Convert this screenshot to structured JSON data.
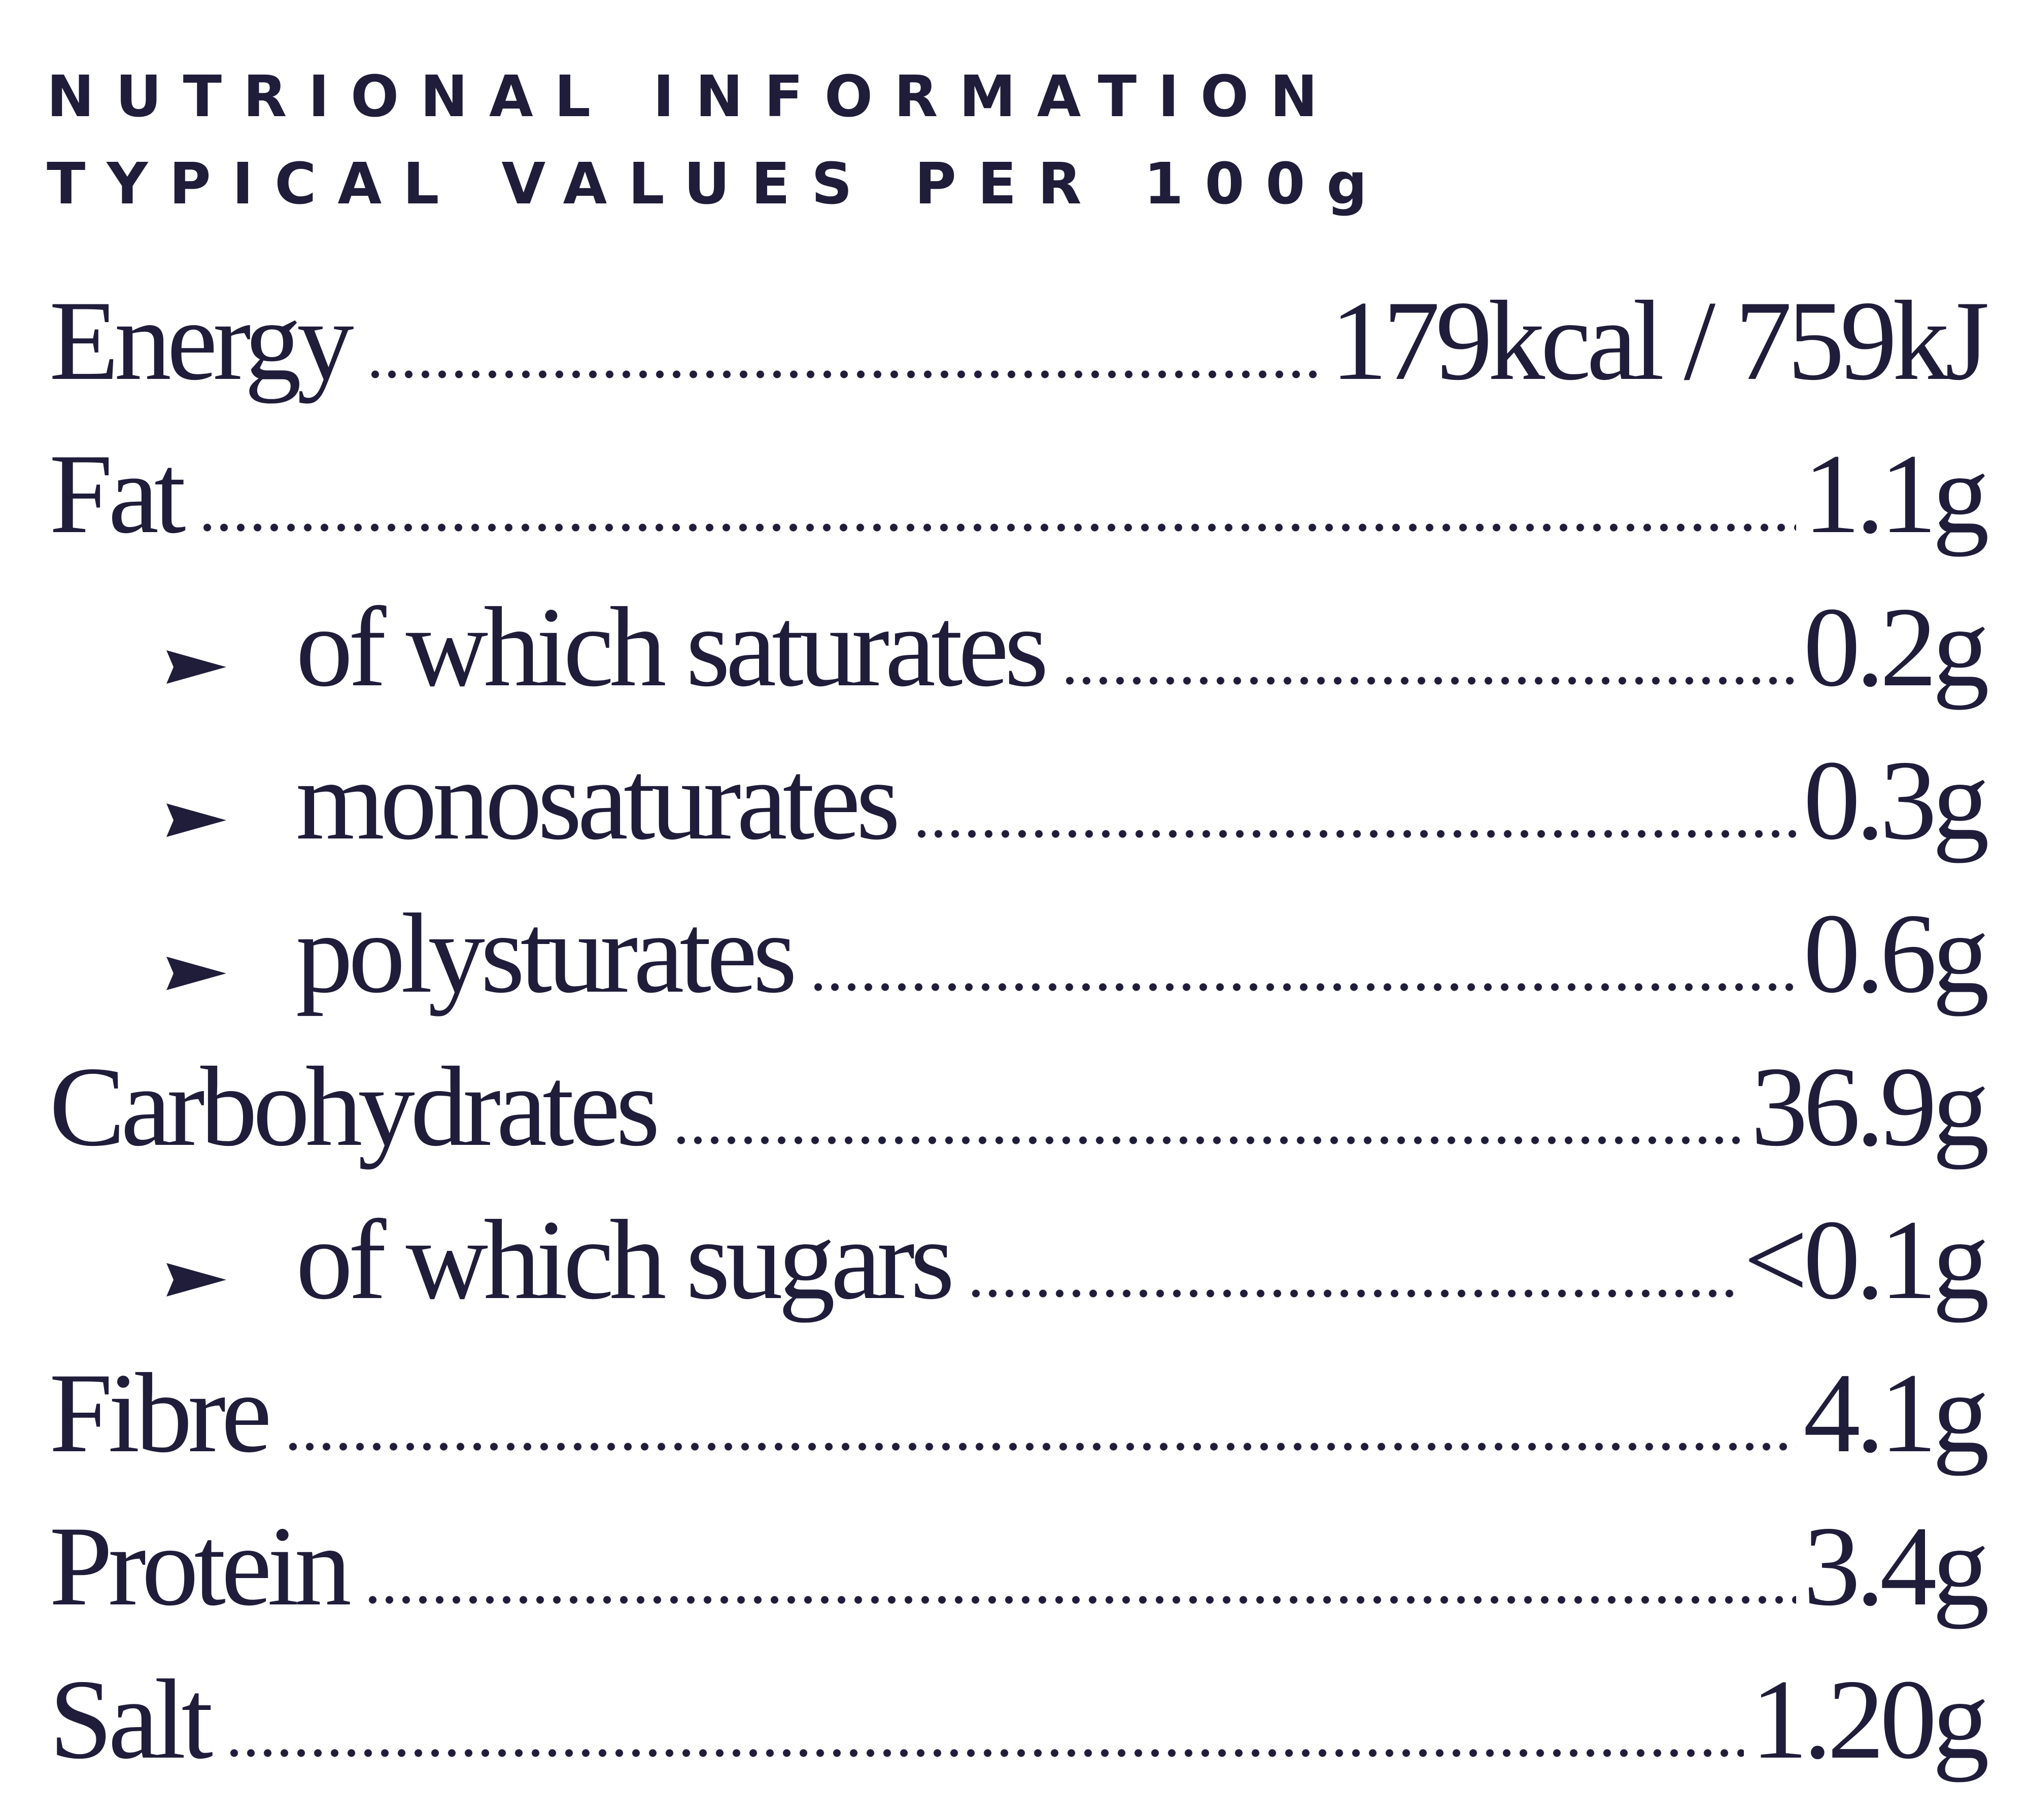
{
  "header": {
    "title": "NUTRIONAL INFORMATION",
    "subtitle": "TYPICAL VALUES PER 100g"
  },
  "rows": [
    {
      "label": "Energy",
      "value": "179kcal / 759kJ"
    },
    {
      "label": "Fat",
      "value": "1.1g",
      "sub": [
        {
          "label": "of which saturates",
          "value": "0.2g"
        },
        {
          "label": "monosaturates",
          "value": "0.3g"
        },
        {
          "label": "polysturates",
          "value": "0.6g"
        }
      ]
    },
    {
      "label": "Carbohydrates",
      "value": "36.9g",
      "sub": [
        {
          "label": "of which sugars",
          "value": "<0.1g"
        }
      ]
    },
    {
      "label": "Fibre",
      "value": "4.1g"
    },
    {
      "label": "Protein",
      "value": "3.4g"
    },
    {
      "label": "Salt",
      "value": "1.20g"
    }
  ]
}
